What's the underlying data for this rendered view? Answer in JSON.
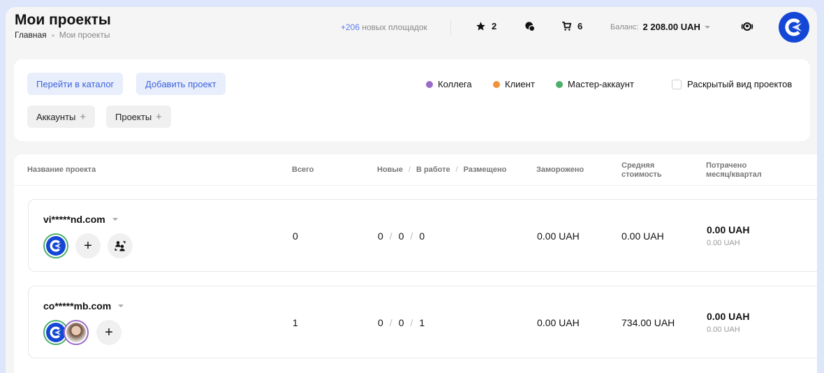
{
  "header": {
    "title": "Мои проекты",
    "breadcrumbs": [
      "Главная",
      "Мои проекты"
    ],
    "new_sites_count": "+206",
    "new_sites_label": "новых площадок",
    "favorites_count": "2",
    "cart_count": "6",
    "balance_label": "Баланс:",
    "balance_value": "2 208.00 UAH"
  },
  "filter": {
    "catalog_button": "Перейти в каталог",
    "add_project_button": "Добавить проект",
    "accounts_button": "Аккаунты",
    "projects_button": "Проекты",
    "legend": [
      {
        "label": "Коллега",
        "color": "#9b6bc9"
      },
      {
        "label": "Клиент",
        "color": "#f0923a"
      },
      {
        "label": "Мастер-аккаунт",
        "color": "#4caf6a"
      }
    ],
    "expanded_view_label": "Раскрытый вид проектов",
    "expanded_view_checked": false
  },
  "table": {
    "columns": {
      "name": "Название проекта",
      "total": "Всего",
      "new": "Новые",
      "in_work": "В работе",
      "placed": "Размещено",
      "frozen": "Заморожено",
      "avg_cost": [
        "Средняя",
        "стоимость"
      ],
      "spent": [
        "Потрачено",
        "месяц/квартал"
      ]
    },
    "rows": [
      {
        "domain": "vi*****nd.com",
        "total": "0",
        "new": "0",
        "in_work": "0",
        "placed": "0",
        "frozen": "0.00 UAH",
        "avg_cost": "0.00 UAH",
        "spent_month": "0.00 UAH",
        "spent_quarter": "0.00 UAH"
      },
      {
        "domain": "co*****mb.com",
        "total": "1",
        "new": "0",
        "in_work": "0",
        "placed": "1",
        "frozen": "0.00 UAH",
        "avg_cost": "734.00 UAH",
        "spent_month": "0.00 UAH",
        "spent_quarter": "0.00 UAH"
      }
    ]
  }
}
